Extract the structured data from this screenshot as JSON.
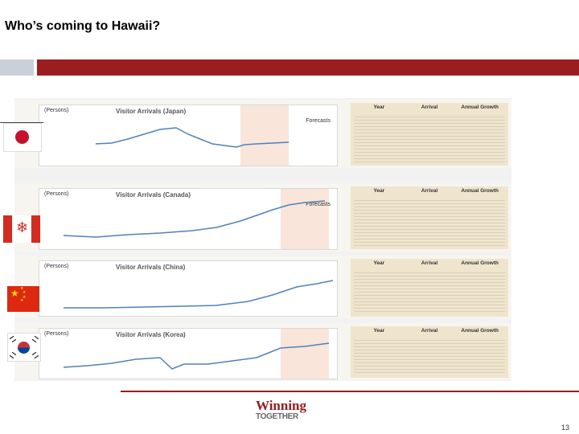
{
  "slide": {
    "title": "Who’s coming to Hawaii?",
    "page_number": "13",
    "colors": {
      "accent_red": "#9b1d20",
      "accent_gray": "#c9d0d9"
    }
  },
  "panels": [
    {
      "country": "Japan",
      "chart_title": "Visitor Arrivals (Japan)",
      "unit_label": "(Persons)",
      "forecast_label": "Forecasts",
      "table_headers": [
        "Year",
        "Arrival",
        "Annual Growth"
      ]
    },
    {
      "country": "Canada",
      "chart_title": "Visitor Arrivals (Canada)",
      "unit_label": "(Persons)",
      "forecast_label": "Forecasts",
      "table_headers": [
        "Year",
        "Arrival",
        "Annual Growth"
      ]
    },
    {
      "country": "China",
      "chart_title": "Visitor Arrivals (China)",
      "unit_label": "(Persons)",
      "forecast_label": "",
      "table_headers": [
        "Year",
        "Arrival",
        "Annual Growth"
      ]
    },
    {
      "country": "Korea",
      "chart_title": "Visitor Arrivals (Korea)",
      "unit_label": "(Persons)",
      "forecast_label": "",
      "table_headers": [
        "Year",
        "Arrival",
        "Annual Growth"
      ]
    }
  ],
  "flags": [
    "japan-flag",
    "canada-flag",
    "china-flag",
    "korea-flag"
  ],
  "logo": {
    "line1": "Winning",
    "line2": "TOGETHER"
  }
}
